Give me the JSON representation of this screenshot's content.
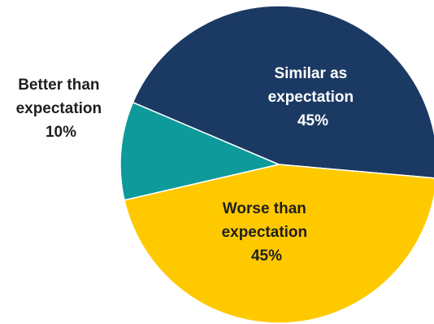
{
  "chart_data": {
    "type": "pie",
    "title": "",
    "slices": [
      {
        "id": "similar",
        "label_lines": [
          "Similar as",
          "expectation"
        ],
        "value_label": "45%",
        "value": 45,
        "color": "#1B3A63",
        "label_color": "#FFFFFF"
      },
      {
        "id": "worse",
        "label_lines": [
          "Worse than",
          "expectation"
        ],
        "value_label": "45%",
        "value": 45,
        "color": "#FFC900",
        "label_color": "#1F1F1F"
      },
      {
        "id": "better",
        "label_lines": [
          "Better than",
          "expectation"
        ],
        "value_label": "10%",
        "value": 10,
        "color": "#0E9A9A",
        "label_color": "#1F1F1F"
      }
    ],
    "legend": "none"
  }
}
